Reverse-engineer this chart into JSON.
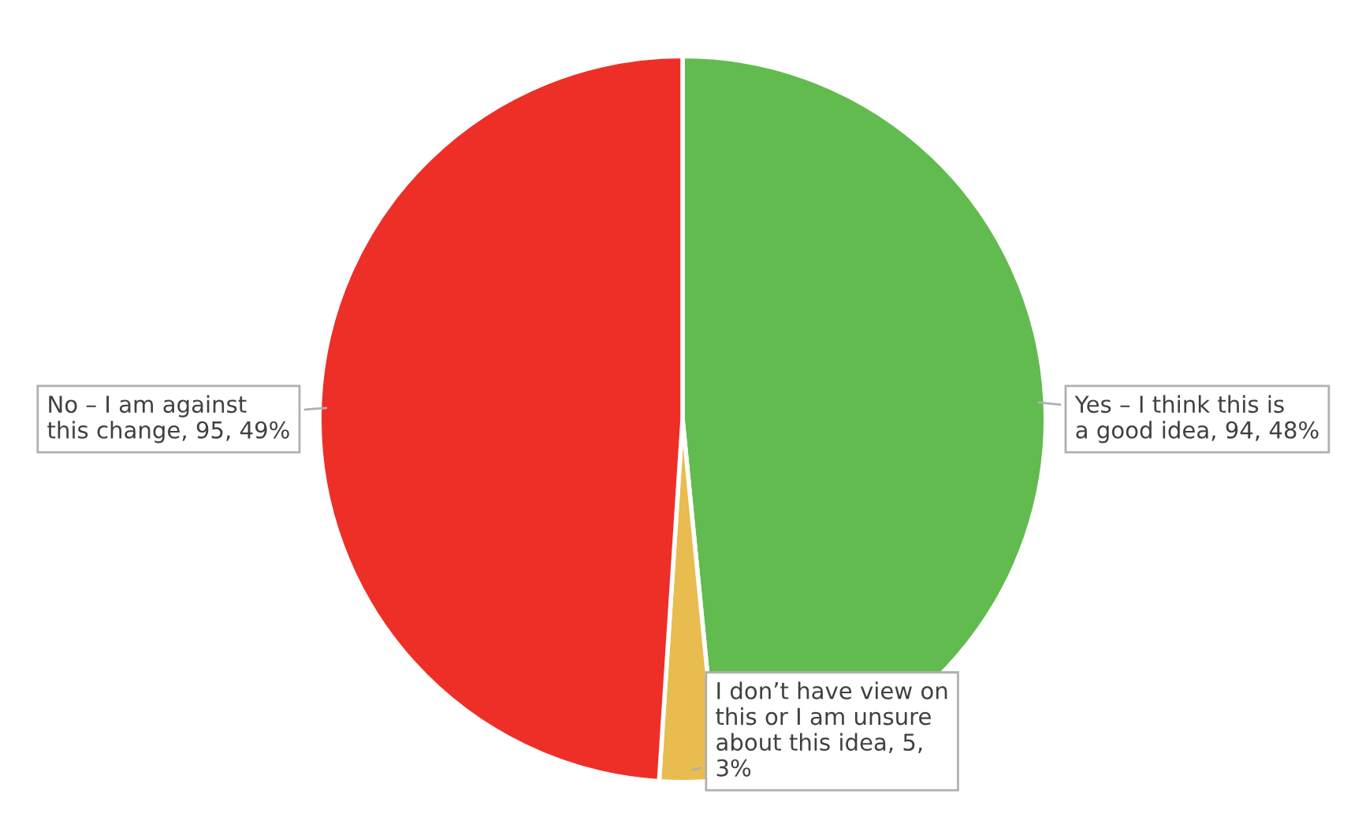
{
  "chart_data": {
    "type": "pie",
    "categories": [
      "Yes – I think this is a good idea",
      "I don’t have view on this or I am unsure about this idea",
      "No – I am against this change"
    ],
    "values": [
      94,
      5,
      95
    ],
    "colors": [
      "#62bb4e",
      "#e8bc4e",
      "#ee2f27"
    ],
    "value_labels": [
      "94, 48%",
      "5, 3%",
      "95, 49%"
    ]
  }
}
